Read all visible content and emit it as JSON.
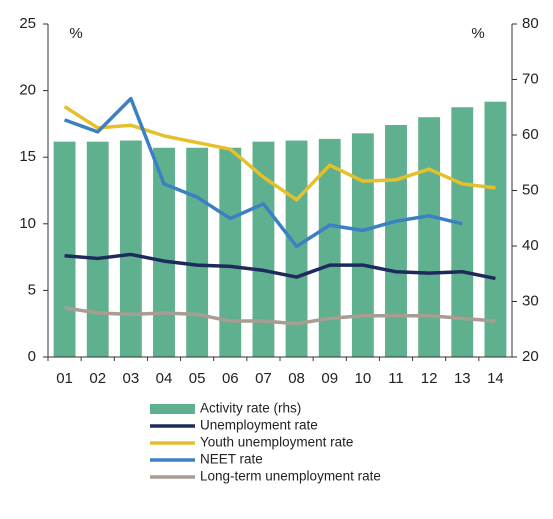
{
  "chart_data": {
    "type": "bar-line",
    "y_unit_left": "%",
    "y_unit_right": "%",
    "categories": [
      "01",
      "02",
      "03",
      "04",
      "05",
      "06",
      "07",
      "08",
      "09",
      "10",
      "11",
      "12",
      "13",
      "14"
    ],
    "ylim": [
      0,
      25
    ],
    "yticks": [
      0,
      5,
      10,
      15,
      20,
      25
    ],
    "y2lim": [
      20,
      80
    ],
    "y2ticks": [
      20,
      30,
      40,
      50,
      60,
      70,
      80
    ],
    "series": [
      {
        "name": "Activity rate (rhs)",
        "type": "bar",
        "axis": "y2",
        "color": "#5fb08f",
        "values": [
          58.8,
          58.8,
          59,
          57.7,
          57.7,
          57.7,
          58.8,
          59,
          59.3,
          60.3,
          61.8,
          63.2,
          65,
          66
        ]
      },
      {
        "name": "Unemployment rate",
        "type": "line",
        "color": "#1f2a5c",
        "values": [
          7.6,
          7.4,
          7.7,
          7.2,
          6.9,
          6.8,
          6.5,
          6.0,
          6.9,
          6.9,
          6.4,
          6.3,
          6.4,
          5.9
        ]
      },
      {
        "name": "Youth unemployment rate",
        "type": "line",
        "color": "#e6c02a",
        "values": [
          18.8,
          17.2,
          17.4,
          16.6,
          16.1,
          15.6,
          13.5,
          11.8,
          14.4,
          13.2,
          13.3,
          14.1,
          13,
          12.7
        ]
      },
      {
        "name": "NEET rate",
        "type": "line",
        "color": "#3b80c3",
        "values": [
          17.8,
          16.9,
          19.4,
          13,
          12,
          10.4,
          11.5,
          8.3,
          9.9,
          9.5,
          10.2,
          10.6,
          10,
          null
        ]
      },
      {
        "name": "Long-term unemployment rate",
        "type": "line",
        "color": "#a99c92",
        "values": [
          3.7,
          3.3,
          3.2,
          3.3,
          3.2,
          2.7,
          2.7,
          2.5,
          2.9,
          3.1,
          3.1,
          3.1,
          2.9,
          2.7
        ]
      }
    ]
  }
}
